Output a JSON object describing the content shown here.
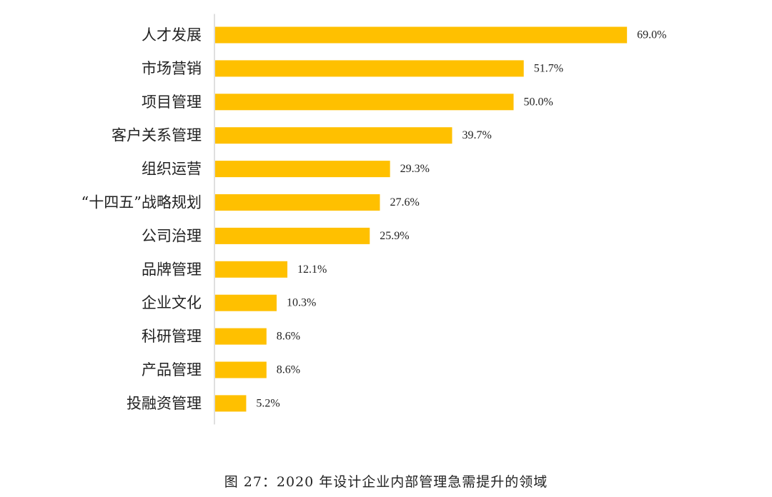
{
  "chart_data": {
    "type": "bar",
    "orientation": "horizontal",
    "categories": [
      "人才发展",
      "市场营销",
      "项目管理",
      "客户关系管理",
      "组织运营",
      "“十四五”战略规划",
      "公司治理",
      "品牌管理",
      "企业文化",
      "科研管理",
      "产品管理",
      "投融资管理"
    ],
    "values": [
      69.0,
      51.7,
      50.0,
      39.7,
      29.3,
      27.6,
      25.9,
      12.1,
      10.3,
      8.6,
      8.6,
      5.2
    ],
    "value_labels": [
      "69.0%",
      "51.7%",
      "50.0%",
      "39.7%",
      "29.3%",
      "27.6%",
      "25.9%",
      "12.1%",
      "10.3%",
      "8.6%",
      "8.6%",
      "5.2%"
    ],
    "xlim": [
      0,
      100
    ],
    "grid": false,
    "bar_color": "#FFC000"
  },
  "caption": "图 27：2020 年设计企业内部管理急需提升的领域"
}
